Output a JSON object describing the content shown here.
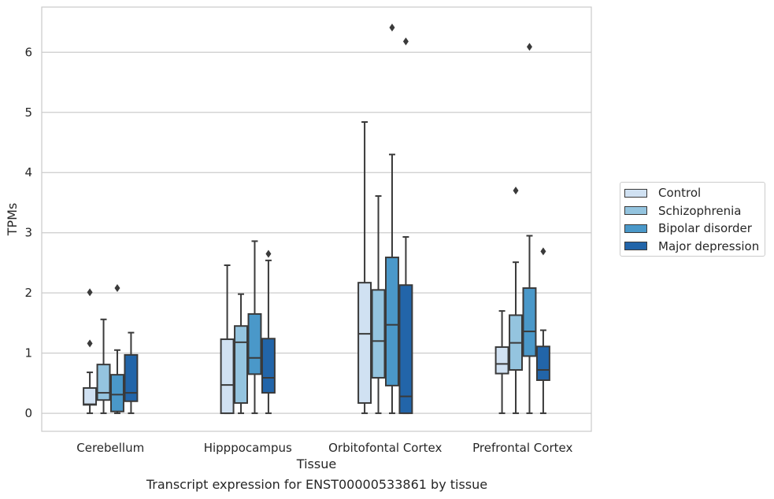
{
  "chart_data": {
    "type": "box",
    "title": "Transcript expression for ENST00000533861 by tissue",
    "xlabel": "Tissue",
    "ylabel": "TPMs",
    "ylim": [
      -0.3,
      6.75
    ],
    "yticks": [
      0,
      1,
      2,
      3,
      4,
      5,
      6
    ],
    "grid": true,
    "legend_position": "right",
    "categories": [
      "Cerebellum",
      "Hipppocampus",
      "Orbitofontal Cortex",
      "Prefrontal Cortex"
    ],
    "series": [
      {
        "name": "Control",
        "color": "#d0e1f2",
        "boxes": [
          {
            "whislo": 0.0,
            "q1": 0.14,
            "median": 0.15,
            "q3": 0.42,
            "whishi": 0.68,
            "fliers": [
              1.16,
              2.01
            ]
          },
          {
            "whislo": 0.0,
            "q1": 0.0,
            "median": 0.47,
            "q3": 1.23,
            "whishi": 2.46,
            "fliers": []
          },
          {
            "whislo": 0.0,
            "q1": 0.17,
            "median": 1.32,
            "q3": 2.17,
            "whishi": 4.84,
            "fliers": []
          },
          {
            "whislo": 0.0,
            "q1": 0.66,
            "median": 0.82,
            "q3": 1.1,
            "whishi": 1.7,
            "fliers": []
          }
        ]
      },
      {
        "name": "Schizophrenia",
        "color": "#94c4df",
        "boxes": [
          {
            "whislo": 0.0,
            "q1": 0.22,
            "median": 0.34,
            "q3": 0.81,
            "whishi": 1.56,
            "fliers": []
          },
          {
            "whislo": 0.0,
            "q1": 0.17,
            "median": 1.18,
            "q3": 1.45,
            "whishi": 1.98,
            "fliers": []
          },
          {
            "whislo": 0.0,
            "q1": 0.59,
            "median": 1.2,
            "q3": 2.05,
            "whishi": 3.61,
            "fliers": []
          },
          {
            "whislo": 0.0,
            "q1": 0.72,
            "median": 1.17,
            "q3": 1.63,
            "whishi": 2.51,
            "fliers": [
              3.7
            ]
          }
        ]
      },
      {
        "name": "Bipolar disorder",
        "color": "#4a98c9",
        "boxes": [
          {
            "whislo": 0.0,
            "q1": 0.03,
            "median": 0.31,
            "q3": 0.64,
            "whishi": 1.05,
            "fliers": [
              2.08
            ]
          },
          {
            "whislo": 0.0,
            "q1": 0.65,
            "median": 0.92,
            "q3": 1.65,
            "whishi": 2.86,
            "fliers": []
          },
          {
            "whislo": 0.0,
            "q1": 0.46,
            "median": 1.47,
            "q3": 2.59,
            "whishi": 4.3,
            "fliers": [
              6.41
            ]
          },
          {
            "whislo": 0.0,
            "q1": 0.95,
            "median": 1.36,
            "q3": 2.08,
            "whishi": 2.95,
            "fliers": [
              6.09
            ]
          }
        ]
      },
      {
        "name": "Major depression",
        "color": "#2265a9",
        "boxes": [
          {
            "whislo": 0.0,
            "q1": 0.2,
            "median": 0.34,
            "q3": 0.97,
            "whishi": 1.34,
            "fliers": []
          },
          {
            "whislo": 0.0,
            "q1": 0.34,
            "median": 0.59,
            "q3": 1.24,
            "whishi": 2.54,
            "fliers": [
              2.65
            ]
          },
          {
            "whislo": 0.0,
            "q1": 0.0,
            "median": 0.28,
            "q3": 2.13,
            "whishi": 2.93,
            "fliers": [
              6.18
            ]
          },
          {
            "whislo": 0.0,
            "q1": 0.55,
            "median": 0.72,
            "q3": 1.11,
            "whishi": 1.38,
            "fliers": [
              2.69
            ]
          }
        ]
      }
    ]
  }
}
